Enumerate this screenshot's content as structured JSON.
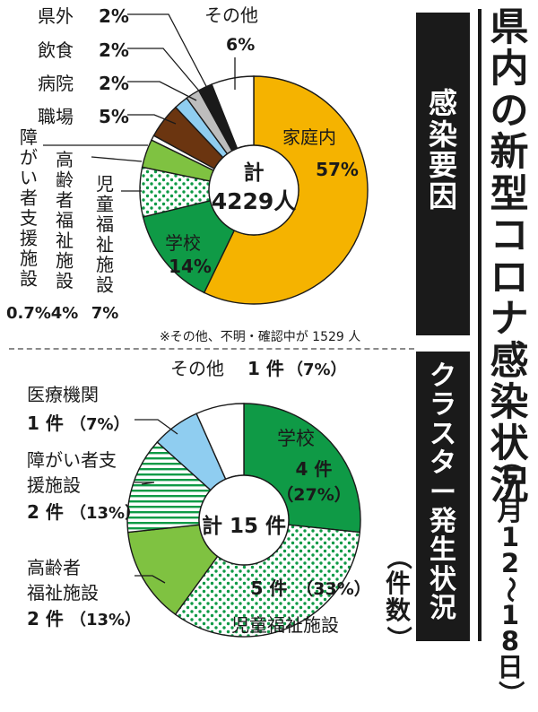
{
  "main_title": "県内の新型コロナ感染状況",
  "main_period": "（7月12～18日）",
  "chart_data": [
    {
      "type": "pie",
      "section_title": "感染要因",
      "center_label": [
        "計",
        "4229人"
      ],
      "note": "※その他、不明・確認中が 1529 人",
      "slices": [
        {
          "name": "家庭内",
          "value_label": "57%",
          "value": 57,
          "color": "#f5b300",
          "pattern": "solid"
        },
        {
          "name": "学校",
          "value_label": "14%",
          "value": 14,
          "color": "#0f9a46",
          "pattern": "solid"
        },
        {
          "name": "児童福祉施設",
          "value_label": "7%",
          "value": 7,
          "color": "#0f9a46",
          "pattern": "dots"
        },
        {
          "name": "高齢者福祉施設",
          "value_label": "4%",
          "value": 4,
          "color": "#7fc241",
          "pattern": "solid"
        },
        {
          "name": "障がい者支援施設",
          "value_label": "0.7%",
          "value": 0.7,
          "color": "#ffffff",
          "pattern": "solid"
        },
        {
          "name": "職場",
          "value_label": "5%",
          "value": 5,
          "color": "#6b3510",
          "pattern": "solid"
        },
        {
          "name": "病院",
          "value_label": "2%",
          "value": 2,
          "color": "#8fcdf0",
          "pattern": "solid"
        },
        {
          "name": "飲食",
          "value_label": "2%",
          "value": 2,
          "color": "#bdbdbd",
          "pattern": "solid"
        },
        {
          "name": "県外",
          "value_label": "2%",
          "value": 2,
          "color": "#1a1a1a",
          "pattern": "solid"
        },
        {
          "name": "その他",
          "value_label": "6%",
          "value": 6,
          "color": "#ffffff",
          "pattern": "solid"
        }
      ]
    },
    {
      "type": "pie",
      "section_title": "クラスター発生状況",
      "unit_label": "（件数）",
      "center_label": "計 15 件",
      "slices": [
        {
          "name": "学校",
          "count_label": "4 件",
          "pct_label": "（27%）",
          "value": 4,
          "color": "#0f9a46",
          "pattern": "solid"
        },
        {
          "name": "児童福祉施設",
          "count_label": "5 件",
          "pct_label": "（33%）",
          "value": 5,
          "color": "#0f9a46",
          "pattern": "dots"
        },
        {
          "name": "高齢者福祉施設",
          "count_label": "2 件",
          "pct_label": "（13%）",
          "value": 2,
          "color": "#7fc241",
          "pattern": "solid"
        },
        {
          "name": "障がい者支援施設",
          "count_label": "2 件",
          "pct_label": "（13%）",
          "value": 2,
          "color": "#0f9a46",
          "pattern": "stripes"
        },
        {
          "name": "医療機関",
          "count_label": "1 件",
          "pct_label": "（7%）",
          "value": 1,
          "color": "#8fcdf0",
          "pattern": "solid"
        },
        {
          "name": "その他",
          "count_label": "1 件",
          "pct_label": "（7%）",
          "value": 1,
          "color": "#ffffff",
          "pattern": "solid"
        }
      ]
    }
  ]
}
